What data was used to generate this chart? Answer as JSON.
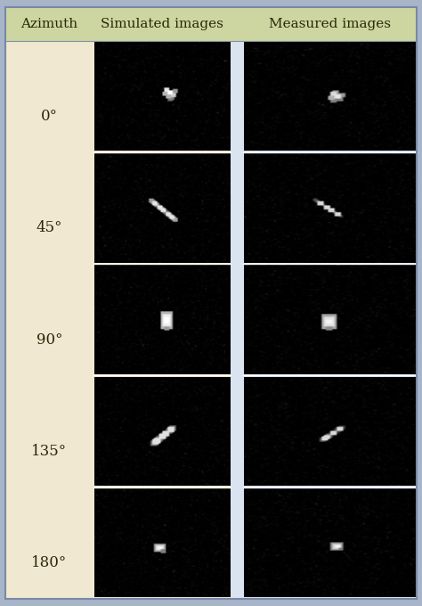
{
  "header_labels": [
    "Azimuth",
    "Simulated images",
    "Measured images"
  ],
  "azimuth_labels": [
    "0°",
    "45°",
    "90°",
    "135°",
    "180°"
  ],
  "outer_border_color": "#a8b4c8",
  "header_bg_color": "#cdd6a0",
  "left_col_bg_color": "#f0e8d0",
  "right_col_bg_color": "#dae4f0",
  "header_text_color": "#2a2808",
  "azimuth_text_color": "#2a2808",
  "figsize": [
    4.74,
    6.8
  ],
  "dpi": 100,
  "n_rows": 5,
  "font_size_header": 11,
  "font_size_azimuth": 12
}
